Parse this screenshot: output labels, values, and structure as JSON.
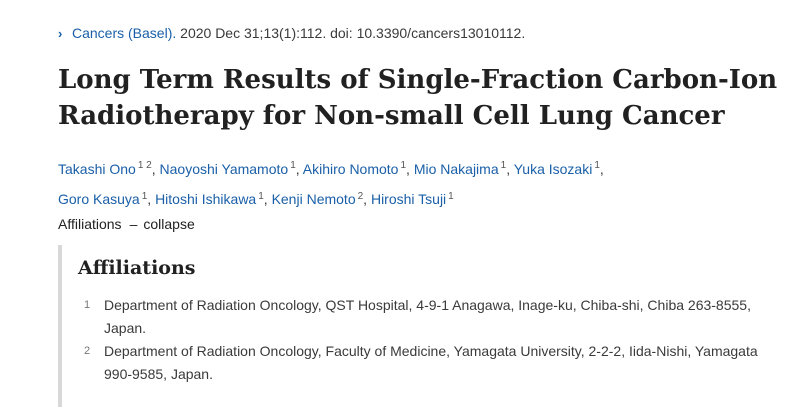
{
  "citation": {
    "journal": "Cancers (Basel).",
    "details": "2020 Dec 31;13(1):112. doi: 10.3390/cancers13010112."
  },
  "article": {
    "title": "Long Term Results of Single-Fraction Carbon-Ion Radiotherapy for Non-small Cell Lung Cancer"
  },
  "authors": [
    {
      "name": "Takashi Ono",
      "affs": "1 2"
    },
    {
      "name": "Naoyoshi Yamamoto",
      "affs": "1"
    },
    {
      "name": "Akihiro Nomoto",
      "affs": "1"
    },
    {
      "name": "Mio Nakajima",
      "affs": "1"
    },
    {
      "name": "Yuka Isozaki",
      "affs": "1"
    },
    {
      "name": "Goro Kasuya",
      "affs": "1"
    },
    {
      "name": "Hitoshi Ishikawa",
      "affs": "1"
    },
    {
      "name": "Kenji Nemoto",
      "affs": "2"
    },
    {
      "name": "Hiroshi Tsuji",
      "affs": "1"
    }
  ],
  "affiliations_toggle": {
    "label": "Affiliations",
    "dash": "–",
    "action": "collapse"
  },
  "affiliations": {
    "heading": "Affiliations",
    "items": [
      {
        "num": "1",
        "text": "Department of Radiation Oncology, QST Hospital, 4-9-1 Anagawa, Inage-ku, Chiba-shi, Chiba 263-8555, Japan."
      },
      {
        "num": "2",
        "text": "Department of Radiation Oncology, Faculty of Medicine, Yamagata University, 2-2-2, Iida-Nishi, Yamagata 990-9585, Japan."
      }
    ]
  },
  "colors": {
    "link": "#1a5fa8",
    "text": "#212121",
    "panel_border": "#d8d8d8"
  },
  "icons": {
    "citation_chevron": "chevron-right-icon"
  }
}
